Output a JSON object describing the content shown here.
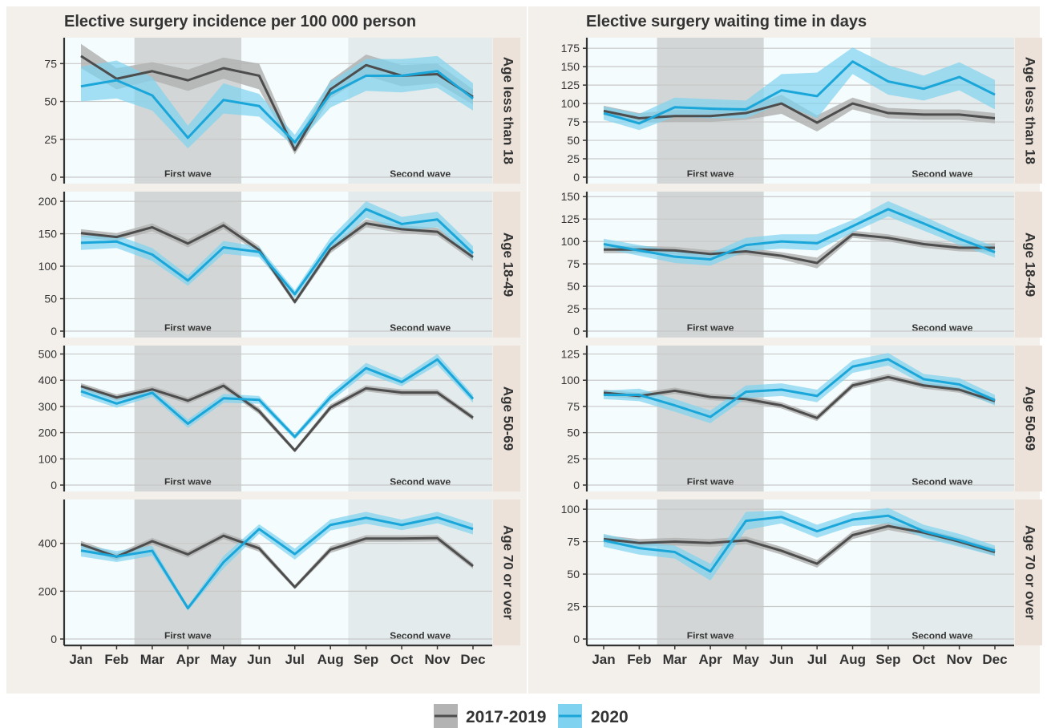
{
  "colors": {
    "baseline": "#4d4d4d",
    "baseline_band": "#b3b3b3",
    "current": "#1aa6d9",
    "current_band": "#7fd3f0",
    "panel_bg": "#f5fcfd",
    "wave1_bg": "#d2d6d6",
    "wave2_bg": "#e4ebec",
    "strip_bg": "#ece2da",
    "outer_bg": "#f3f0ec",
    "grid": "#c8c8c8"
  },
  "legend": {
    "items": [
      {
        "label": "2017-2019",
        "color_key": "baseline"
      },
      {
        "label": "2020",
        "color_key": "current"
      }
    ]
  },
  "chart_data": [
    {
      "type": "line",
      "title": "Elective surgery incidence per 100 000 person",
      "categories": [
        "Jan",
        "Feb",
        "Mar",
        "Apr",
        "May",
        "Jun",
        "Jul",
        "Aug",
        "Sep",
        "Oct",
        "Nov",
        "Dec"
      ],
      "annotations": [
        {
          "label": "First wave",
          "from": "Mar",
          "to": "May"
        },
        {
          "label": "Second wave",
          "from": "Sep",
          "to": "Dec"
        }
      ],
      "facets": [
        {
          "label": "Age less than 18",
          "ylim": [
            0,
            90
          ],
          "yticks": [
            0,
            25,
            50,
            75
          ],
          "series": [
            {
              "name": "2017-2019",
              "values": [
                80,
                65,
                70,
                64,
                72,
                67,
                18,
                58,
                74,
                67,
                68,
                53
              ],
              "lower": [
                72,
                58,
                64,
                57,
                65,
                58,
                15,
                52,
                67,
                60,
                62,
                48
              ],
              "upper": [
                88,
                72,
                76,
                71,
                79,
                75,
                22,
                64,
                81,
                74,
                75,
                58
              ]
            },
            {
              "name": "2020",
              "values": [
                60,
                64,
                54,
                26,
                51,
                47,
                23,
                55,
                67,
                67,
                70,
                52
              ],
              "lower": [
                50,
                52,
                44,
                19,
                42,
                40,
                20,
                46,
                57,
                56,
                59,
                44
              ],
              "upper": [
                73,
                77,
                66,
                34,
                62,
                55,
                28,
                63,
                78,
                78,
                80,
                62
              ]
            }
          ]
        },
        {
          "label": "Age 18-49",
          "ylim": [
            0,
            210
          ],
          "yticks": [
            0,
            50,
            100,
            150,
            200
          ],
          "series": [
            {
              "name": "2017-2019",
              "values": [
                151,
                145,
                160,
                135,
                163,
                125,
                45,
                126,
                166,
                157,
                153,
                114
              ],
              "lower": [
                145,
                139,
                154,
                129,
                157,
                119,
                41,
                120,
                160,
                151,
                147,
                108
              ],
              "upper": [
                157,
                151,
                166,
                141,
                169,
                131,
                49,
                132,
                172,
                163,
                159,
                120
              ]
            },
            {
              "name": "2020",
              "values": [
                136,
                138,
                118,
                78,
                129,
                122,
                57,
                134,
                188,
                165,
                172,
                120
              ],
              "lower": [
                125,
                128,
                108,
                70,
                119,
                114,
                51,
                124,
                175,
                155,
                160,
                110
              ],
              "upper": [
                147,
                148,
                128,
                86,
                139,
                130,
                63,
                144,
                200,
                176,
                184,
                131
              ]
            }
          ]
        },
        {
          "label": "Age 50-69",
          "ylim": [
            0,
            520
          ],
          "yticks": [
            0,
            100,
            200,
            300,
            400,
            500
          ],
          "series": [
            {
              "name": "2017-2019",
              "values": [
                377,
                334,
                365,
                322,
                379,
                282,
                132,
                296,
                369,
                353,
                353,
                257
              ],
              "lower": [
                365,
                322,
                353,
                310,
                367,
                270,
                124,
                284,
                357,
                341,
                341,
                247
              ],
              "upper": [
                389,
                346,
                377,
                334,
                391,
                294,
                140,
                308,
                381,
                365,
                365,
                267
              ]
            },
            {
              "name": "2020",
              "values": [
                358,
                311,
                352,
                234,
                331,
                325,
                184,
                335,
                446,
                393,
                479,
                329
              ],
              "lower": [
                340,
                295,
                337,
                218,
                314,
                310,
                174,
                318,
                426,
                377,
                458,
                314
              ],
              "upper": [
                376,
                327,
                367,
                250,
                348,
                340,
                194,
                352,
                466,
                409,
                500,
                344
              ]
            }
          ]
        },
        {
          "label": "Age 70 or over",
          "ylim": [
            0,
            570
          ],
          "yticks": [
            0,
            200,
            400
          ],
          "series": [
            {
              "name": "2017-2019",
              "values": [
                396,
                344,
                409,
                354,
                432,
                379,
                217,
                374,
                420,
                420,
                422,
                305
              ],
              "lower": [
                382,
                330,
                395,
                340,
                418,
                365,
                208,
                360,
                406,
                406,
                408,
                293
              ],
              "upper": [
                410,
                358,
                423,
                368,
                446,
                393,
                226,
                388,
                434,
                434,
                436,
                317
              ]
            },
            {
              "name": "2020",
              "values": [
                370,
                345,
                369,
                129,
                321,
                460,
                355,
                477,
                507,
                477,
                508,
                460
              ],
              "lower": [
                345,
                322,
                348,
                118,
                295,
                440,
                332,
                454,
                482,
                455,
                484,
                437
              ],
              "upper": [
                395,
                368,
                390,
                140,
                347,
                480,
                378,
                500,
                532,
                499,
                532,
                483
              ]
            }
          ]
        }
      ]
    },
    {
      "type": "line",
      "title": "Elective surgery waiting time in days",
      "categories": [
        "Jan",
        "Feb",
        "Mar",
        "Apr",
        "May",
        "Jun",
        "Jul",
        "Aug",
        "Sep",
        "Oct",
        "Nov",
        "Dec"
      ],
      "annotations": [
        {
          "label": "First wave",
          "from": "Mar",
          "to": "May"
        },
        {
          "label": "Second wave",
          "from": "Sep",
          "to": "Dec"
        }
      ],
      "facets": [
        {
          "label": "Age less than 18",
          "ylim": [
            0,
            185
          ],
          "yticks": [
            0,
            25,
            50,
            75,
            100,
            125,
            150,
            175
          ],
          "series": [
            {
              "name": "2017-2019",
              "values": [
                90,
                80,
                83,
                83,
                87,
                100,
                74,
                100,
                87,
                85,
                85,
                80
              ],
              "lower": [
                84,
                74,
                75,
                75,
                78,
                86,
                62,
                92,
                80,
                78,
                78,
                73
              ],
              "upper": [
                97,
                87,
                91,
                91,
                95,
                112,
                84,
                108,
                94,
                92,
                92,
                87
              ]
            },
            {
              "name": "2020",
              "values": [
                87,
                73,
                95,
                93,
                92,
                118,
                110,
                157,
                130,
                120,
                136,
                112
              ],
              "lower": [
                78,
                64,
                82,
                80,
                80,
                100,
                80,
                140,
                112,
                104,
                118,
                92
              ],
              "upper": [
                96,
                86,
                108,
                106,
                104,
                140,
                142,
                176,
                152,
                138,
                156,
                132
              ]
            }
          ]
        },
        {
          "label": "Age 18-49",
          "ylim": [
            0,
            152
          ],
          "yticks": [
            0,
            25,
            50,
            75,
            100,
            125,
            150
          ],
          "series": [
            {
              "name": "2017-2019",
              "values": [
                91,
                91,
                90,
                86,
                89,
                84,
                76,
                108,
                104,
                97,
                93,
                93
              ],
              "lower": [
                87,
                87,
                86,
                82,
                85,
                80,
                70,
                104,
                100,
                93,
                89,
                88
              ],
              "upper": [
                95,
                95,
                94,
                90,
                93,
                88,
                82,
                112,
                108,
                101,
                97,
                98
              ]
            },
            {
              "name": "2020",
              "values": [
                97,
                90,
                83,
                80,
                96,
                100,
                98,
                117,
                136,
                120,
                103,
                88
              ],
              "lower": [
                92,
                84,
                76,
                73,
                89,
                92,
                90,
                110,
                128,
                112,
                96,
                82
              ],
              "upper": [
                103,
                96,
                90,
                87,
                104,
                108,
                108,
                124,
                145,
                128,
                110,
                94
              ]
            }
          ]
        },
        {
          "label": "Age 50-69",
          "ylim": [
            0,
            130
          ],
          "yticks": [
            0,
            25,
            50,
            75,
            100,
            125
          ],
          "series": [
            {
              "name": "2017-2019",
              "values": [
                88,
                85,
                90,
                84,
                82,
                76,
                64,
                95,
                103,
                95,
                91,
                80
              ],
              "lower": [
                85,
                82,
                87,
                81,
                79,
                73,
                61,
                92,
                100,
                92,
                88,
                77
              ],
              "upper": [
                91,
                88,
                93,
                87,
                85,
                79,
                67,
                98,
                106,
                98,
                94,
                83
              ]
            },
            {
              "name": "2020",
              "values": [
                86,
                86,
                76,
                65,
                89,
                91,
                85,
                113,
                120,
                101,
                96,
                81
              ],
              "lower": [
                82,
                80,
                70,
                59,
                83,
                85,
                79,
                107,
                114,
                96,
                90,
                76
              ],
              "upper": [
                90,
                92,
                82,
                71,
                95,
                97,
                91,
                119,
                126,
                106,
                102,
                86
              ]
            }
          ]
        },
        {
          "label": "Age 70 or over",
          "ylim": [
            0,
            105
          ],
          "yticks": [
            0,
            25,
            50,
            75,
            100
          ],
          "series": [
            {
              "name": "2017-2019",
              "values": [
                77,
                74,
                75,
                74,
                76,
                68,
                58,
                80,
                87,
                82,
                75,
                67
              ],
              "lower": [
                74,
                71,
                72,
                71,
                73,
                65,
                55,
                77,
                84,
                79,
                72,
                64
              ],
              "upper": [
                80,
                77,
                78,
                77,
                79,
                71,
                61,
                83,
                90,
                85,
                78,
                70
              ]
            },
            {
              "name": "2020",
              "values": [
                76,
                70,
                67,
                52,
                91,
                94,
                83,
                92,
                95,
                83,
                76,
                68
              ],
              "lower": [
                71,
                65,
                62,
                45,
                84,
                89,
                78,
                87,
                89,
                78,
                71,
                64
              ],
              "upper": [
                81,
                75,
                72,
                58,
                98,
                99,
                88,
                97,
                101,
                88,
                81,
                72
              ]
            }
          ]
        }
      ]
    }
  ]
}
